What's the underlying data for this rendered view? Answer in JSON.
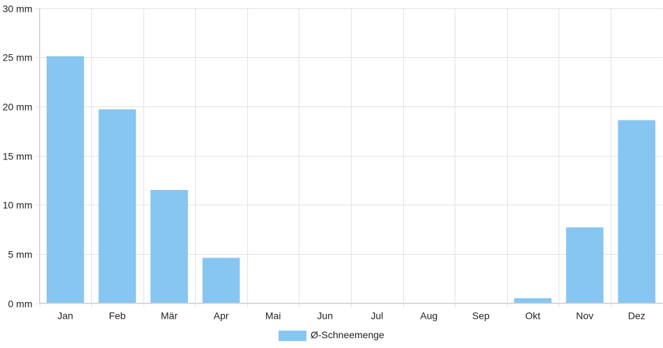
{
  "chart_data": {
    "type": "bar",
    "categories": [
      "Jan",
      "Feb",
      "Mär",
      "Apr",
      "Mai",
      "Jun",
      "Jul",
      "Aug",
      "Sep",
      "Okt",
      "Nov",
      "Dez"
    ],
    "series": [
      {
        "name": "Ø-Schneemenge",
        "values": [
          25.1,
          19.7,
          11.5,
          4.6,
          0,
          0,
          0,
          0,
          0,
          0.5,
          7.7,
          18.6
        ],
        "color": "#88c6f2"
      }
    ],
    "ylim": [
      0,
      30
    ],
    "y_ticks": [
      0,
      5,
      10,
      15,
      20,
      25,
      30
    ],
    "y_tick_labels": [
      "0 mm",
      "5 mm",
      "10 mm",
      "15 mm",
      "20 mm",
      "25 mm",
      "30 mm"
    ],
    "grid": true,
    "legend_position": "bottom-center"
  },
  "colors": {
    "grid": "#e3e3e3",
    "axis": "#cfcfcf",
    "text": "#222222"
  }
}
